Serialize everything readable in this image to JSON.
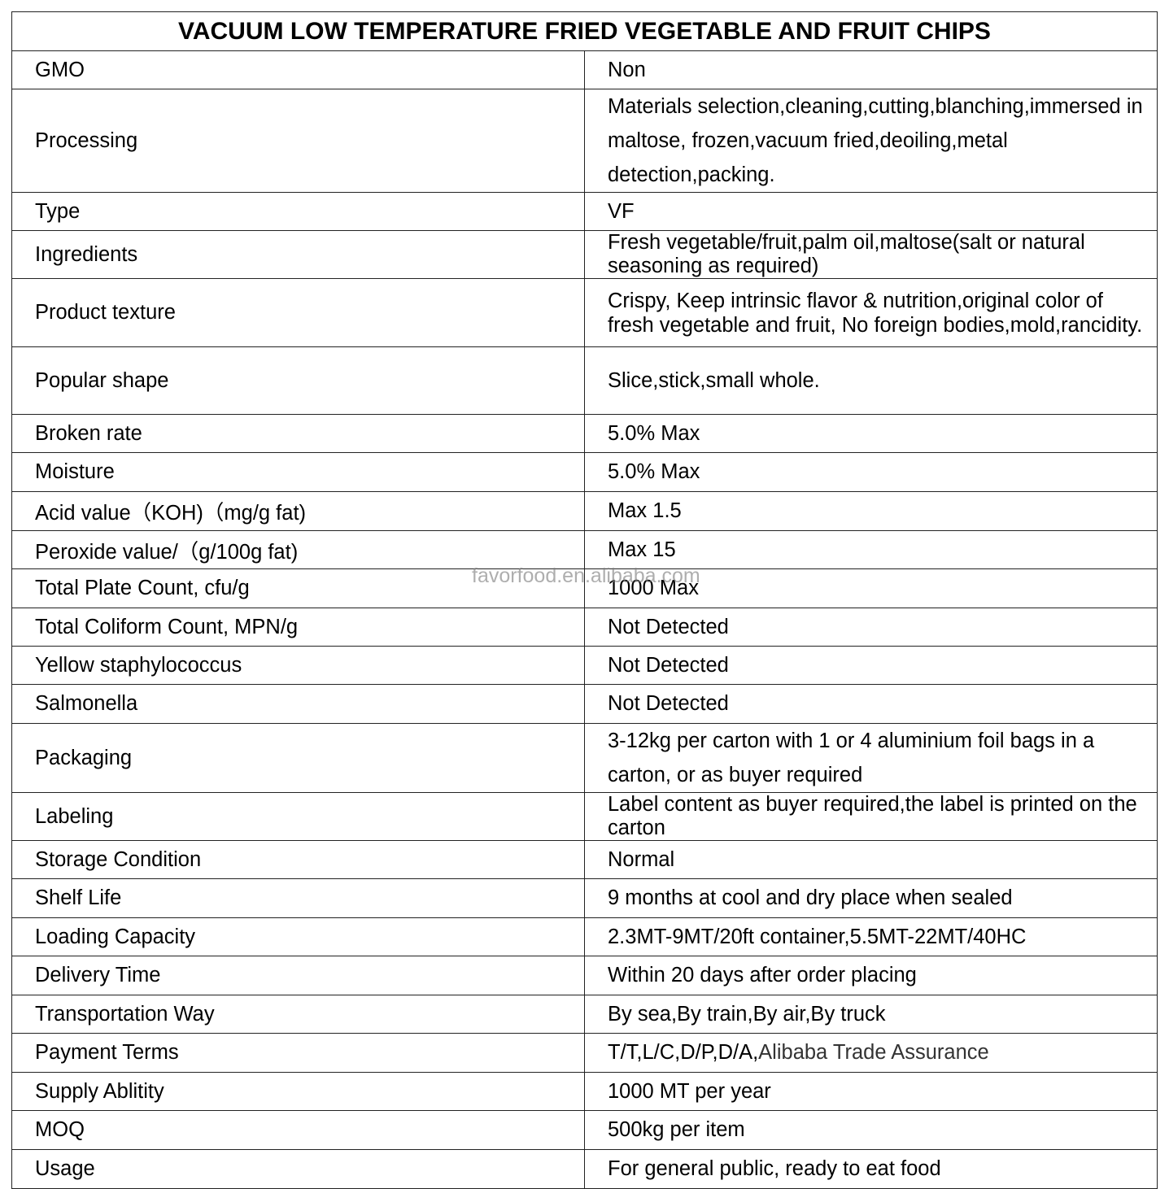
{
  "title": "VACUUM LOW TEMPERATURE FRIED VEGETABLE AND FRUIT CHIPS",
  "watermark": "favorfood.en.alibaba.com",
  "rows": [
    {
      "label": "GMO",
      "value": "Non"
    },
    {
      "label": "Processing",
      "value": "Materials selection,cleaning,cutting,blanching,immersed in maltose, frozen,vacuum fried,deoiling,metal detection,packing."
    },
    {
      "label": "Type",
      "value": "VF"
    },
    {
      "label": "Ingredients",
      "value": "Fresh vegetable/fruit,palm oil,maltose(salt or natural seasoning as required)"
    },
    {
      "label": "Product texture",
      "value": "Crispy, Keep intrinsic flavor & nutrition,original color of fresh vegetable and fruit, No foreign bodies,mold,rancidity."
    },
    {
      "label": "Popular shape",
      "value": "Slice,stick,small whole."
    },
    {
      "label": "Broken rate",
      "value": "5.0% Max"
    },
    {
      "label": "Moisture",
      "value": "5.0% Max"
    },
    {
      "label": "Acid value（KOH)（mg/g fat)",
      "value": "Max 1.5"
    },
    {
      "label": "Peroxide value/（g/100g fat)",
      "value": "Max 15"
    },
    {
      "label": "Total Plate Count, cfu/g",
      "value": "1000 Max"
    },
    {
      "label": "Total Coliform Count, MPN/g",
      "value": "Not Detected"
    },
    {
      "label": "Yellow staphylococcus",
      "value": "Not Detected"
    },
    {
      "label": "Salmonella",
      "value": "Not Detected"
    },
    {
      "label": "Packaging",
      "value": "3-12kg per carton with 1 or 4 aluminium foil bags in a carton, or as buyer required"
    },
    {
      "label": "Labeling",
      "value": "Label content as buyer required,the label is printed on the carton"
    },
    {
      "label": "Storage Condition",
      "value": "Normal"
    },
    {
      "label": "Shelf Life",
      "value": "9 months at cool and dry place when sealed"
    },
    {
      "label": "Loading Capacity",
      "value": "2.3MT-9MT/20ft container,5.5MT-22MT/40HC"
    },
    {
      "label": "Delivery Time",
      "value": "Within 20 days after order placing"
    },
    {
      "label": "Transportation Way",
      "value": "By sea,By train,By air,By truck"
    },
    {
      "label": "Payment Terms",
      "value": "T/T,L/C,D/P,D/A,",
      "value_extra": "Alibaba Trade Assurance"
    },
    {
      "label": "Supply Ablitity",
      "value": "1000 MT per year"
    },
    {
      "label": "MOQ",
      "value": "500kg per item"
    },
    {
      "label": "Usage",
      "value": "For general public, ready to eat food"
    }
  ]
}
